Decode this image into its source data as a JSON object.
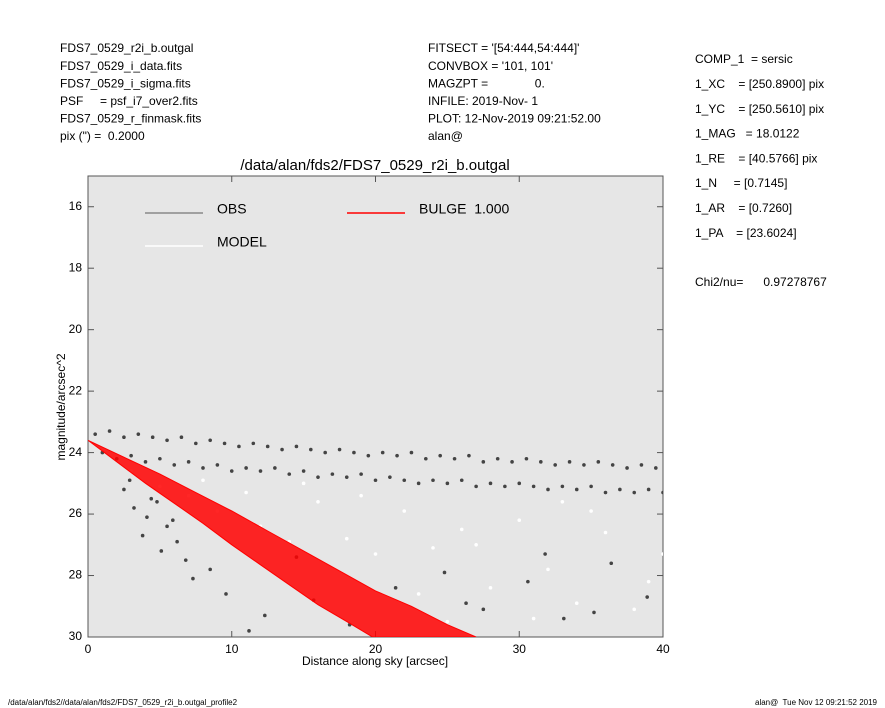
{
  "header": {
    "left": [
      "FDS7_0529_r2i_b.outgal",
      "FDS7_0529_i_data.fits",
      "FDS7_0529_i_sigma.fits",
      "PSF     = psf_i7_over2.fits",
      "FDS7_0529_r_finmask.fits",
      "pix (\") =  0.2000"
    ],
    "middle": [
      "FITSECT = '[54:444,54:444]'",
      "CONVBOX = '101, 101'",
      "MAGZPT =              0.",
      "INFILE: 2019-Nov- 1",
      "PLOT: 12-Nov-2019 09:21:52.00",
      "alan@"
    ],
    "right": [
      "COMP_1  = sersic",
      "1_XC    = [250.8900] pix",
      "1_YC    = [250.5610] pix",
      "1_MAG   = 18.0122",
      "1_RE    = [40.5766] pix",
      "1_N     = [0.7145]",
      "1_AR    = [0.7260]",
      "1_PA    = [23.6024]"
    ],
    "chi": "Chi2/nu=      0.97278767"
  },
  "footer": {
    "left": "/data/alan/fds2//data/alan/fds2/FDS7_0529_r2i_b.outgal_profile2",
    "right": "alan@  Tue Nov 12 09:21:52 2019"
  },
  "chart_data": {
    "type": "scatter",
    "title": "/data/alan/fds2/FDS7_0529_r2i_b.outgal",
    "xlabel": "Distance along sky [arcsec]",
    "ylabel": "magnitude/arcsec^2",
    "xlim": [
      0,
      40
    ],
    "xticks": [
      0,
      10,
      20,
      30,
      40
    ],
    "ylim": [
      30,
      15
    ],
    "yticks": [
      16,
      18,
      20,
      22,
      24,
      26,
      28,
      30
    ],
    "series": [
      {
        "name": "OBS",
        "color": "#444444",
        "legend_color": "#888888",
        "x": [
          0.5,
          1.5,
          2.5,
          3.5,
          4.5,
          5.5,
          6.5,
          7.5,
          8.5,
          9.5,
          10.5,
          11.5,
          12.5,
          13.5,
          14.5,
          15.5,
          16.5,
          17.5,
          18.5,
          19.5,
          20.5,
          21.5,
          22.5,
          23.5,
          24.5,
          25.5,
          26.5,
          27.5,
          28.5,
          29.5,
          30.5,
          31.5,
          32.5,
          33.5,
          34.5,
          35.5,
          36.5,
          37.5,
          38.5,
          39.5,
          1,
          2,
          3,
          4,
          5,
          6,
          7,
          8,
          9,
          10,
          11,
          12,
          13,
          14,
          15,
          16,
          17,
          18,
          19,
          20,
          21,
          22,
          23,
          24,
          25,
          26,
          27,
          28,
          29,
          30,
          31,
          32,
          33,
          34,
          35,
          36,
          37,
          38,
          39,
          40,
          2.5,
          3.2,
          4.1,
          4.8,
          5.5,
          6.2,
          3.8,
          5.1,
          6.8,
          7.3,
          2.9,
          4.4,
          5.9,
          8.5,
          9.6,
          12.3,
          15.7,
          18.2,
          21.4,
          24.8,
          27.5,
          30.6,
          33.1,
          36.4,
          38.9,
          11.2,
          14.5,
          26.3,
          31.8,
          35.2
        ],
        "values": [
          23.4,
          23.3,
          23.5,
          23.4,
          23.5,
          23.6,
          23.5,
          23.7,
          23.6,
          23.7,
          23.8,
          23.7,
          23.8,
          23.9,
          23.8,
          23.9,
          24.0,
          23.9,
          24.0,
          24.1,
          24.0,
          24.1,
          24.0,
          24.2,
          24.1,
          24.2,
          24.1,
          24.3,
          24.2,
          24.3,
          24.2,
          24.3,
          24.4,
          24.3,
          24.4,
          24.3,
          24.4,
          24.5,
          24.4,
          24.5,
          24.0,
          24.2,
          24.1,
          24.3,
          24.2,
          24.4,
          24.3,
          24.5,
          24.4,
          24.6,
          24.5,
          24.6,
          24.5,
          24.7,
          24.6,
          24.8,
          24.7,
          24.8,
          24.7,
          24.9,
          24.8,
          24.9,
          25.0,
          24.9,
          25.0,
          24.9,
          25.1,
          25.0,
          25.1,
          25.0,
          25.1,
          25.2,
          25.1,
          25.2,
          25.1,
          25.3,
          25.2,
          25.3,
          25.2,
          25.3,
          25.2,
          25.8,
          26.1,
          25.6,
          26.4,
          26.9,
          26.7,
          27.2,
          27.5,
          28.1,
          24.9,
          25.5,
          26.2,
          27.8,
          28.6,
          29.3,
          28.8,
          29.6,
          28.4,
          27.9,
          29.1,
          28.2,
          29.4,
          27.6,
          28.7,
          29.8,
          27.4,
          28.9,
          27.3,
          29.2
        ]
      },
      {
        "name": "MODEL",
        "color": "#ffffff",
        "legend_color": "#ffffff",
        "x": [
          3,
          5,
          7,
          9,
          12,
          14,
          16,
          18,
          20,
          22,
          24,
          26,
          28,
          30,
          32,
          34,
          36,
          38,
          40,
          8,
          11,
          15,
          19,
          23,
          27,
          31,
          35,
          39,
          25,
          33
        ],
        "values": [
          24.6,
          25.1,
          25.4,
          25.9,
          26.4,
          26.9,
          25.6,
          26.8,
          27.3,
          25.9,
          27.1,
          26.5,
          28.4,
          26.2,
          27.8,
          28.9,
          26.6,
          29.1,
          27.3,
          24.9,
          25.3,
          25.0,
          25.4,
          28.6,
          27.0,
          29.4,
          25.9,
          28.2,
          29.5,
          25.6
        ]
      },
      {
        "name": "BULGE  1.000",
        "color": "#ff0000",
        "legend_color": "#ff0000",
        "style": "band",
        "x": [
          0,
          2,
          4,
          6,
          8,
          10,
          12,
          14,
          16,
          18,
          19.8,
          27,
          25,
          22.5,
          20,
          17.5,
          15,
          12.5,
          10,
          7.5,
          5,
          2.5
        ],
        "values": [
          23.6,
          24.3,
          25.0,
          25.65,
          26.3,
          27.0,
          27.65,
          28.3,
          28.95,
          29.5,
          30,
          30,
          29.6,
          29.0,
          28.5,
          27.85,
          27.2,
          26.55,
          25.9,
          25.3,
          24.7,
          24.15
        ]
      }
    ]
  }
}
